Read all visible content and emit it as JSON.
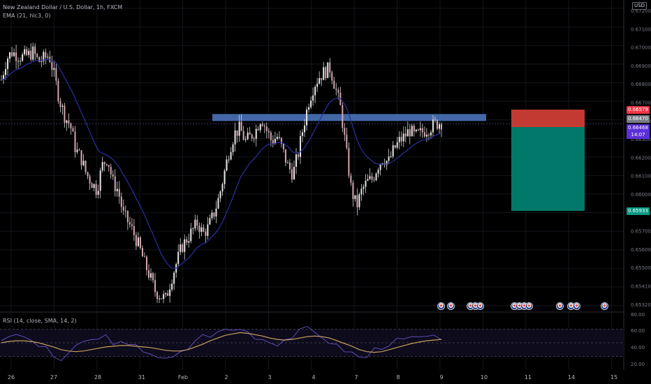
{
  "header": {
    "symbol_line": "New Zealand Dollar / U.S. Dollar, 1h, FXCM",
    "ema_line": "EMA (21, hlc3, 0)",
    "rsi_line": "RSI (14, close, SMA, 14, 2)"
  },
  "currency_badge": "USD",
  "price_axis": {
    "ticks": [
      "0.67200",
      "0.67100",
      "0.67000",
      "0.66900",
      "0.66800",
      "0.66700",
      "0.66610",
      "0.66300",
      "0.66200",
      "0.66100",
      "0.66000",
      "0.65800",
      "0.65700",
      "0.65600",
      "0.65500",
      "0.65410",
      "0.65320"
    ]
  },
  "price_labels": {
    "stop": {
      "text": "0.66579",
      "color": "#f23645"
    },
    "entry": {
      "text": "0.66470",
      "color": "#787b86"
    },
    "last": {
      "text": "0.66468",
      "color": "#5b2fd8"
    },
    "countdown": {
      "text": "14:07",
      "color": "#5b2fd8"
    },
    "target": {
      "text": "0.65933",
      "color": "#089981"
    }
  },
  "rsi_axis": {
    "ticks": [
      "80.00",
      "60.00",
      "40.00",
      "20.00"
    ]
  },
  "time_axis": {
    "labels": [
      "26",
      "27",
      "28",
      "31",
      "Feb",
      "2",
      "3",
      "4",
      "7",
      "8",
      "9",
      "10",
      "11",
      "14",
      "15"
    ]
  },
  "colors": {
    "background": "#000000",
    "ema": "#2a2fa0",
    "resistance_zone": "#4a72b8",
    "stop_zone": "#c23a32",
    "target_zone": "#00796b",
    "rsi_line": "#6d52c8",
    "rsi_ma": "#c9a060"
  },
  "chart_data": {
    "type": "candlestick",
    "title": "New Zealand Dollar / U.S. Dollar, 1h, FXCM",
    "indicators": [
      "EMA (21, hlc3, 0)",
      "RSI (14, close, SMA, 14, 2)"
    ],
    "x_labels": [
      "26",
      "27",
      "28",
      "31",
      "Feb",
      "2",
      "3",
      "4",
      "7",
      "8",
      "9",
      "10",
      "11",
      "14",
      "15"
    ],
    "ylim": [
      0.653,
      0.6722
    ],
    "resistance_zone": [
      0.6646,
      0.6651
    ],
    "position": {
      "entry": 0.6647,
      "stop": 0.66579,
      "target": 0.65933
    },
    "last_price": 0.66468,
    "closes": [
      0.6673,
      0.6686,
      0.669,
      0.6688,
      0.6687,
      0.6688,
      0.669,
      0.6684,
      0.6686,
      0.6688,
      0.6675,
      0.666,
      0.665,
      0.6645,
      0.663,
      0.6625,
      0.6615,
      0.661,
      0.6605,
      0.662,
      0.6625,
      0.661,
      0.6605,
      0.659,
      0.6585,
      0.6578,
      0.657,
      0.656,
      0.6552,
      0.6543,
      0.654,
      0.6538,
      0.655,
      0.656,
      0.657,
      0.6575,
      0.658,
      0.6585,
      0.6578,
      0.6582,
      0.659,
      0.66,
      0.6615,
      0.663,
      0.664,
      0.6643,
      0.6635,
      0.6638,
      0.6642,
      0.665,
      0.6642,
      0.6635,
      0.6638,
      0.663,
      0.662,
      0.6615,
      0.6628,
      0.6645,
      0.666,
      0.667,
      0.6675,
      0.6678,
      0.668,
      0.6668,
      0.6655,
      0.663,
      0.6605,
      0.6595,
      0.6605,
      0.661,
      0.6612,
      0.662,
      0.6625,
      0.6622,
      0.663,
      0.6635,
      0.6638,
      0.6642,
      0.6638,
      0.664,
      0.6642,
      0.6644,
      0.6646,
      0.66468
    ],
    "rsi": [
      55,
      62,
      58,
      60,
      52,
      47,
      40,
      30,
      25,
      35,
      42,
      50,
      56,
      54,
      60,
      52,
      48,
      45,
      44,
      40,
      36,
      30,
      24,
      28,
      34,
      42,
      55,
      60,
      62,
      64,
      70,
      68,
      72,
      66,
      60,
      56,
      52,
      50,
      55,
      60,
      66,
      70,
      65,
      60,
      52,
      44,
      40,
      35,
      28,
      30,
      40,
      45,
      50,
      52,
      54,
      56,
      58,
      55,
      57,
      58
    ],
    "rsi_ma": [
      50,
      52,
      53,
      53,
      52,
      50,
      47,
      44,
      40,
      38,
      37,
      38,
      40,
      42,
      44,
      45,
      46,
      46,
      45,
      44,
      43,
      41,
      39,
      38,
      38,
      40,
      44,
      48,
      53,
      57,
      61,
      63,
      65,
      64,
      62,
      60,
      57,
      55,
      54,
      55,
      57,
      59,
      60,
      59,
      57,
      53,
      49,
      45,
      40,
      37,
      36,
      37,
      40,
      43,
      46,
      49,
      51,
      53,
      54,
      55
    ]
  }
}
